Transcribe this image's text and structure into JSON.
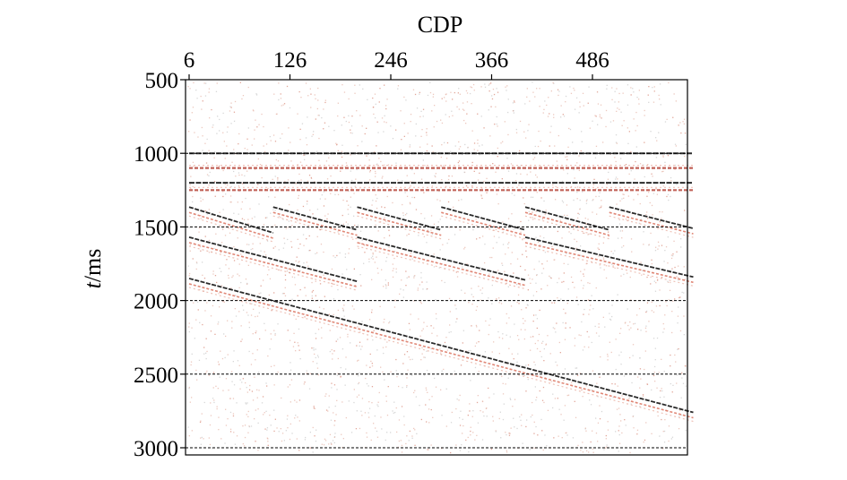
{
  "chart_data": {
    "type": "scatter",
    "title": "",
    "xlabel": "CDP",
    "ylabel_italic": "t",
    "ylabel_unit": "/ms",
    "x_ticks": [
      6,
      126,
      246,
      366,
      486
    ],
    "y_ticks": [
      500,
      1000,
      1500,
      2000,
      2500,
      3000
    ],
    "xlim": [
      6,
      606
    ],
    "ylim": [
      3000,
      500
    ],
    "x_axis_position": "top",
    "y_axis_inverted": true,
    "grid_lines_dashed_at": [
      1000,
      1500,
      2000,
      2500,
      3000
    ],
    "events": [
      {
        "kind": "horizontal",
        "x": [
          6,
          606
        ],
        "t": [
          1000,
          1000
        ],
        "color": "#2a2a2a"
      },
      {
        "kind": "horizontal",
        "x": [
          6,
          606
        ],
        "t": [
          1100,
          1100
        ],
        "color": "#b23a2e"
      },
      {
        "kind": "horizontal",
        "x": [
          6,
          606
        ],
        "t": [
          1200,
          1200
        ],
        "color": "#2a2a2a"
      },
      {
        "kind": "horizontal",
        "x": [
          6,
          606
        ],
        "t": [
          1250,
          1250
        ],
        "color": "#b23a2e"
      },
      {
        "kind": "dipping",
        "x": [
          6,
          106
        ],
        "t": [
          1365,
          1540
        ],
        "color": "#2a2a2a"
      },
      {
        "kind": "dipping",
        "x": [
          106,
          206
        ],
        "t": [
          1365,
          1520
        ],
        "color": "#2a2a2a"
      },
      {
        "kind": "dipping",
        "x": [
          206,
          306
        ],
        "t": [
          1365,
          1520
        ],
        "color": "#2a2a2a"
      },
      {
        "kind": "dipping",
        "x": [
          306,
          406
        ],
        "t": [
          1365,
          1520
        ],
        "color": "#2a2a2a"
      },
      {
        "kind": "dipping",
        "x": [
          406,
          506
        ],
        "t": [
          1365,
          1520
        ],
        "color": "#2a2a2a"
      },
      {
        "kind": "dipping",
        "x": [
          506,
          606
        ],
        "t": [
          1365,
          1510
        ],
        "color": "#2a2a2a"
      },
      {
        "kind": "dipping",
        "x": [
          6,
          206
        ],
        "t": [
          1570,
          1870
        ],
        "color": "#2a2a2a"
      },
      {
        "kind": "dipping",
        "x": [
          206,
          406
        ],
        "t": [
          1570,
          1860
        ],
        "color": "#2a2a2a"
      },
      {
        "kind": "dipping",
        "x": [
          406,
          606
        ],
        "t": [
          1570,
          1840
        ],
        "color": "#2a2a2a"
      },
      {
        "kind": "dipping",
        "x": [
          6,
          606
        ],
        "t": [
          1850,
          2760
        ],
        "color": "#2a2a2a"
      }
    ]
  }
}
